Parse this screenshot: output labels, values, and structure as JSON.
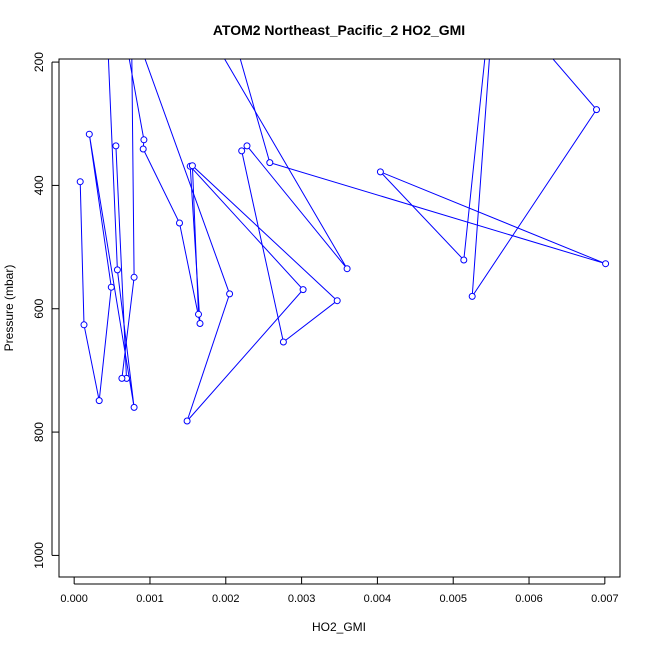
{
  "chart_data": {
    "type": "line",
    "title": "ATOM2 Northeast_Pacific_2 HO2_GMI",
    "xlabel": "HO2_GMI",
    "ylabel": "Pressure (mbar)",
    "xlim": [
      -0.0002,
      0.0072
    ],
    "ylim": [
      1035,
      195
    ],
    "y_reversed": true,
    "x_ticks": [
      0.0,
      0.001,
      0.002,
      0.003,
      0.004,
      0.005,
      0.006,
      0.007
    ],
    "x_tick_labels": [
      "0.000",
      "0.001",
      "0.002",
      "0.003",
      "0.004",
      "0.005",
      "0.006",
      "0.007"
    ],
    "y_ticks": [
      200,
      400,
      600,
      800,
      1000
    ],
    "y_tick_labels": [
      "200",
      "400",
      "600",
      "800",
      "1000"
    ],
    "series": [
      {
        "color": "#0000ff",
        "marker": "open-circle",
        "points": [
          {
            "x": 0.00045,
            "y": 190,
            "marker": false
          },
          {
            "x": 0.00057,
            "y": 537,
            "marker": true
          },
          {
            "x": 0.00079,
            "y": 760,
            "marker": true
          },
          {
            "x": 0.0002,
            "y": 317,
            "marker": true
          },
          {
            "x": 0.00049,
            "y": 565,
            "marker": true
          },
          {
            "x": 0.00033,
            "y": 749,
            "marker": true
          },
          {
            "x": 0.00013,
            "y": 626,
            "marker": true
          },
          {
            "x": 8e-05,
            "y": 394,
            "marker": false
          },
          {
            "x": 8e-05,
            "y": 394,
            "marker": true
          }
        ]
      },
      {
        "color": "#0000ff",
        "marker": "open-circle",
        "points": [
          {
            "x": 0.00072,
            "y": 190,
            "marker": false
          },
          {
            "x": 0.00092,
            "y": 326,
            "marker": true
          },
          {
            "x": 0.00091,
            "y": 341,
            "marker": true
          },
          {
            "x": 0.00139,
            "y": 461,
            "marker": true
          },
          {
            "x": 0.00166,
            "y": 624,
            "marker": true
          },
          {
            "x": 0.00153,
            "y": 369,
            "marker": true
          },
          {
            "x": 0.00302,
            "y": 569,
            "marker": true
          },
          {
            "x": 0.00149,
            "y": 782,
            "marker": true
          },
          {
            "x": 0.00205,
            "y": 576,
            "marker": true
          },
          {
            "x": 0.00092,
            "y": 190,
            "marker": false
          }
        ]
      },
      {
        "color": "#0000ff",
        "marker": "open-circle",
        "points": [
          {
            "x": 0.00055,
            "y": 336,
            "marker": true
          },
          {
            "x": 0.00069,
            "y": 713,
            "marker": true
          },
          {
            "x": 0.00063,
            "y": 713,
            "marker": true
          },
          {
            "x": 0.00079,
            "y": 549,
            "marker": true
          },
          {
            "x": 0.00076,
            "y": 190,
            "marker": false
          }
        ]
      },
      {
        "color": "#0000ff",
        "marker": "open-circle",
        "points": [
          {
            "x": 0.00196,
            "y": 190,
            "marker": false
          },
          {
            "x": 0.0036,
            "y": 535,
            "marker": true
          },
          {
            "x": 0.00228,
            "y": 336,
            "marker": true
          },
          {
            "x": 0.00221,
            "y": 344,
            "marker": true
          },
          {
            "x": 0.00276,
            "y": 654,
            "marker": true
          },
          {
            "x": 0.00347,
            "y": 587,
            "marker": true
          },
          {
            "x": 0.00156,
            "y": 368,
            "marker": true
          },
          {
            "x": 0.00164,
            "y": 609,
            "marker": true
          }
        ]
      },
      {
        "color": "#0000ff",
        "marker": "open-circle",
        "points": [
          {
            "x": 0.00218,
            "y": 190,
            "marker": false
          },
          {
            "x": 0.00258,
            "y": 363,
            "marker": true
          },
          {
            "x": 0.00701,
            "y": 527,
            "marker": true
          },
          {
            "x": 0.00404,
            "y": 378,
            "marker": true
          },
          {
            "x": 0.00514,
            "y": 521,
            "marker": true
          },
          {
            "x": 0.00542,
            "y": 190,
            "marker": false
          }
        ]
      },
      {
        "color": "#0000ff",
        "marker": "open-circle",
        "points": [
          {
            "x": 0.00628,
            "y": 190,
            "marker": false
          },
          {
            "x": 0.00689,
            "y": 277,
            "marker": true
          },
          {
            "x": 0.00525,
            "y": 580,
            "marker": true
          },
          {
            "x": 0.00548,
            "y": 190,
            "marker": false
          }
        ]
      }
    ]
  }
}
